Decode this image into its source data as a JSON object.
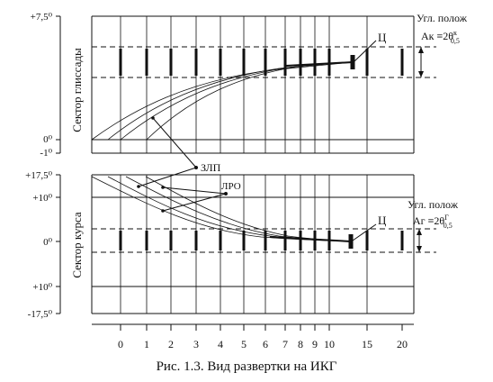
{
  "top_panel": {
    "side_label": "Сектор глиссады",
    "y_labels": [
      "+7,5⁰",
      "0⁰",
      "-1⁰"
    ],
    "angle_label": "Угл. полож",
    "formula_label": "Aк ≡2θ",
    "formula_sup": "к",
    "formula_sub": "0,5",
    "center_label": "Ц"
  },
  "bottom_panel": {
    "side_label": "Сектор курса",
    "y_labels": [
      "+17,5⁰",
      "+10⁰",
      "0⁰",
      "+10⁰",
      "-17,5⁰"
    ],
    "angle_label": "Угл. полож",
    "formula_label": "Aг ≡2θ",
    "formula_sup": "Г",
    "formula_sub": "0,5",
    "center_label": "Ц"
  },
  "annotations": {
    "zlp": "ЗЛП",
    "lro": "ЛРО"
  },
  "x_axis": {
    "ticks": [
      "0",
      "1",
      "2",
      "3",
      "4",
      "5",
      "6",
      "7",
      "8",
      "9",
      "10",
      "15",
      "20"
    ]
  },
  "caption": "Рис. 1.3. Вид развертки на ИКГ",
  "colors": {
    "ink": "#111111",
    "background": "#ffffff"
  }
}
